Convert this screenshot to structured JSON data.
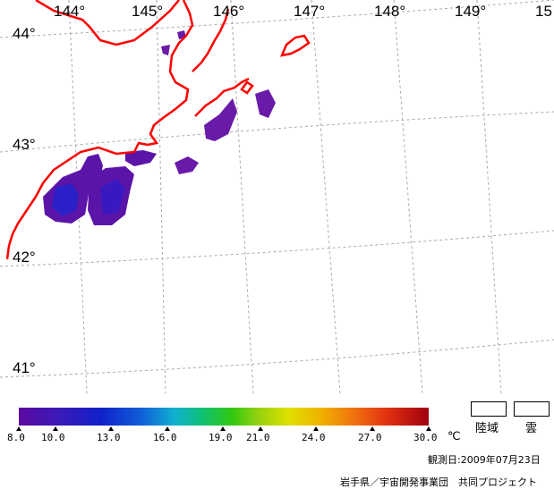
{
  "longitude_labels": [
    "144°",
    "145°",
    "146°",
    "147°",
    "148°",
    "149°",
    "15"
  ],
  "latitude_labels": [
    "44°",
    "43°",
    "42°",
    "41°"
  ],
  "colorbar": {
    "ticks": [
      "8.0",
      "10.0",
      "13.0",
      "16.0",
      "19.0",
      "21.0",
      "24.0",
      "27.0",
      "30.0"
    ],
    "unit": "℃",
    "range": [
      8.0,
      30.0
    ]
  },
  "legend": {
    "land": "陸域",
    "cloud": "雲"
  },
  "observation_date": "観測日:2009年07月23日",
  "credit": "岩手県／宇宙開発事業団　共同プロジェクト",
  "colors": {
    "coastline": "#ff0000",
    "grid": "#aaaaaa",
    "sst_low": "#5a0aa0",
    "sst_mid": "#1a2ad0"
  }
}
